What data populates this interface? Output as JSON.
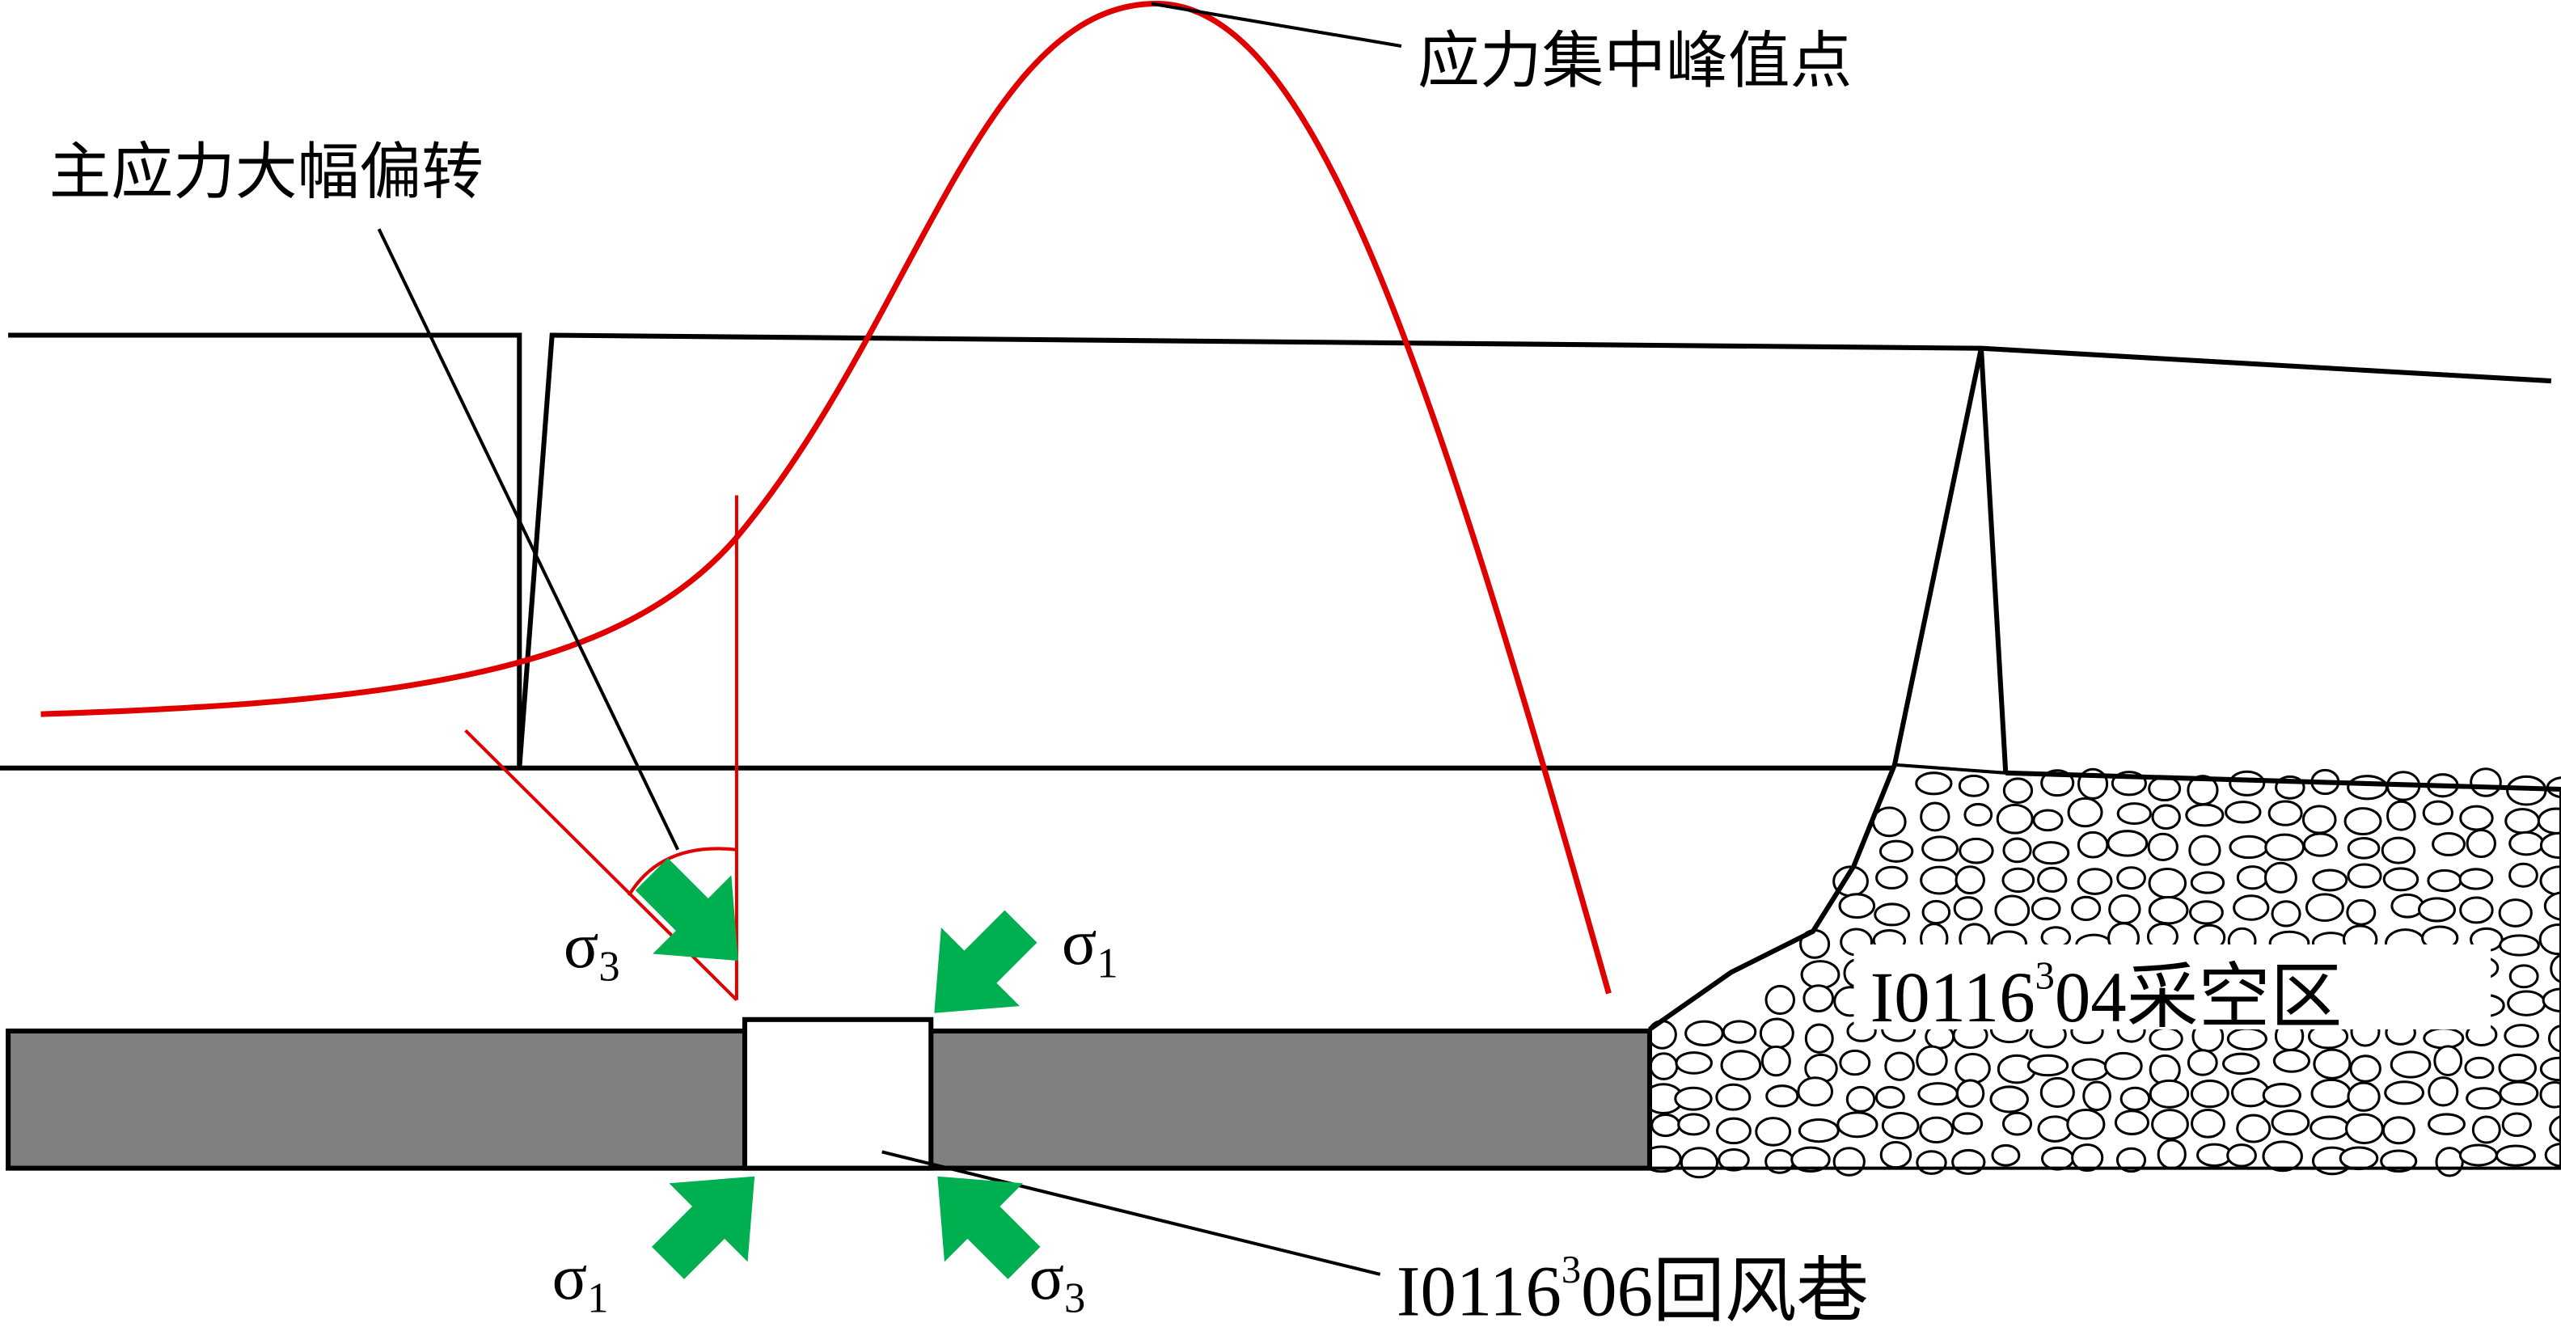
{
  "peak_label": "应力集中峰值点",
  "rotation_label": "主应力大幅偏转",
  "stresses": [
    {
      "symbol": "σ",
      "index": "3"
    },
    {
      "symbol": "σ",
      "index": "1"
    },
    {
      "symbol": "σ",
      "index": "1"
    },
    {
      "symbol": "σ",
      "index": "3"
    }
  ],
  "roadway_label": {
    "prefix": "I0116",
    "sup": "3",
    "suffix": "06回风巷"
  },
  "goaf_label": {
    "prefix": "I0116",
    "sup": "3",
    "suffix": "04采空区"
  }
}
